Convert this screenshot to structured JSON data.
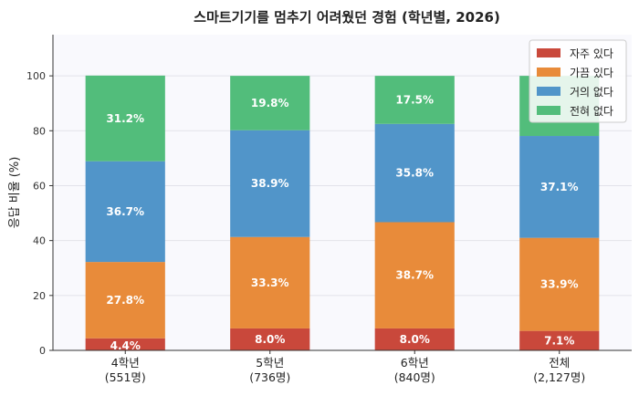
{
  "chart_data": {
    "type": "bar",
    "stacked": true,
    "title": "스마트기기를 멈추기 어려웠던 경험 (학년별, 2026)",
    "ylabel": "응답 비율 (%)",
    "xlabel": "",
    "ylim": [
      0,
      115
    ],
    "yticks": [
      "0",
      "20",
      "40",
      "60",
      "80",
      "100"
    ],
    "categories": [
      {
        "name": "4학년",
        "n": "(551명)"
      },
      {
        "name": "5학년",
        "n": "(736명)"
      },
      {
        "name": "6학년",
        "n": "(840명)"
      },
      {
        "name": "전체",
        "n": "(2,127명)"
      }
    ],
    "series": [
      {
        "name": "자주 있다",
        "color": "#c9483b",
        "values": [
          4.4,
          8.0,
          8.0,
          7.1
        ],
        "labels": [
          "4.4%",
          "8.0%",
          "8.0%",
          "7.1%"
        ]
      },
      {
        "name": "가끔 있다",
        "color": "#e88b3a",
        "values": [
          27.8,
          33.3,
          38.7,
          33.9
        ],
        "labels": [
          "27.8%",
          "33.3%",
          "38.7%",
          "33.9%"
        ]
      },
      {
        "name": "거의 없다",
        "color": "#5195c9",
        "values": [
          36.7,
          38.9,
          35.8,
          37.1
        ],
        "labels": [
          "36.7%",
          "38.9%",
          "35.8%",
          "37.1%"
        ]
      },
      {
        "name": "전혀 없다",
        "color": "#52bd7b",
        "values": [
          31.2,
          19.8,
          17.5,
          21.9
        ],
        "labels": [
          "31.2%",
          "19.8%",
          "17.5%",
          ""
        ]
      }
    ],
    "grid": "horizontal",
    "legend_position": "top-right"
  }
}
